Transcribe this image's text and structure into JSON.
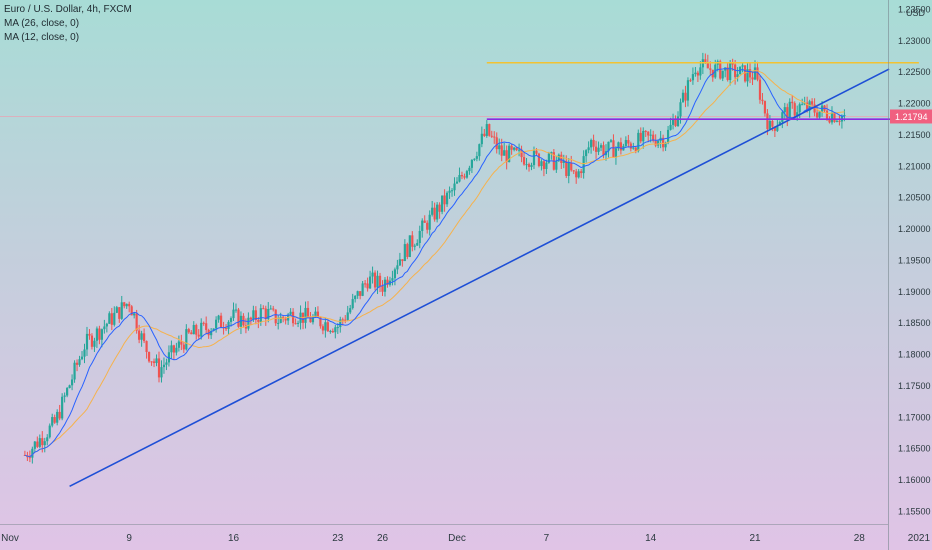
{
  "legend": {
    "title": "Euro / U.S. Dollar, 4h, FXCM",
    "ma1": "MA (26, close, 0)",
    "ma2": "MA (12, close, 0)"
  },
  "price_badge": "1.21794",
  "colors": {
    "up": "#26a69a",
    "down": "#ef5350",
    "trendline": "#1e4fd6",
    "resistance": "#f2c233",
    "support": "#8a2be2",
    "ma_slow": "#f6b24c",
    "ma_fast": "#2962ff",
    "badge": "#f06080"
  },
  "chart_data": {
    "type": "candlestick",
    "title": "Euro / U.S. Dollar, 4h, FXCM",
    "ylabel": "USD",
    "ylim": [
      1.153,
      1.2365
    ],
    "y_ticks": [
      "1.15500",
      "1.16000",
      "1.16500",
      "1.17000",
      "1.17500",
      "1.18000",
      "1.18500",
      "1.19000",
      "1.19500",
      "1.20000",
      "1.20500",
      "1.21000",
      "1.21500",
      "1.22000",
      "1.22500",
      "1.23000",
      "1.23500"
    ],
    "x_ticks": [
      "Nov",
      "9",
      "16",
      "23",
      "26",
      "Dec",
      "7",
      "14",
      "21",
      "28",
      "2021"
    ],
    "last_price": 1.21794,
    "series": [
      {
        "name": "MA (26, close, 0)"
      },
      {
        "name": "MA (12, close, 0)"
      }
    ],
    "close_path": [
      [
        "Nov 2",
        1.164
      ],
      [
        "Nov 4",
        1.169
      ],
      [
        "Nov 6",
        1.1815
      ],
      [
        "Nov 9",
        1.1885
      ],
      [
        "Nov 10",
        1.1815
      ],
      [
        "Nov 11",
        1.1775
      ],
      [
        "Nov 12",
        1.1805
      ],
      [
        "Nov 13",
        1.183
      ],
      [
        "Nov 16",
        1.186
      ],
      [
        "Nov 17",
        1.185
      ],
      [
        "Nov 18",
        1.187
      ],
      [
        "Nov 19",
        1.1855
      ],
      [
        "Nov 20",
        1.1865
      ],
      [
        "Nov 23",
        1.1845
      ],
      [
        "Nov 24",
        1.188
      ],
      [
        "Nov 25",
        1.192
      ],
      [
        "Nov 26",
        1.191
      ],
      [
        "Nov 27",
        1.195
      ],
      [
        "Dec 1",
        1.207
      ],
      [
        "Dec 2",
        1.2115
      ],
      [
        "Dec 3",
        1.2155
      ],
      [
        "Dec 4",
        1.212
      ],
      [
        "Dec 7",
        1.211
      ],
      [
        "Dec 8",
        1.2105
      ],
      [
        "Dec 9",
        1.208
      ],
      [
        "Dec 10",
        1.214
      ],
      [
        "Dec 11",
        1.2125
      ],
      [
        "Dec 14",
        1.2145
      ],
      [
        "Dec 15",
        1.2145
      ],
      [
        "Dec 16",
        1.2195
      ],
      [
        "Dec 17",
        1.226
      ],
      [
        "Dec 18",
        1.2255
      ],
      [
        "Dec 21",
        1.2245
      ],
      [
        "Dec 22",
        1.216
      ],
      [
        "Dec 23",
        1.2185
      ],
      [
        "Dec 24",
        1.2195
      ],
      [
        "Dec 27",
        1.2179
      ]
    ],
    "annotations": [
      {
        "name": "rising trendline",
        "from": [
          "Nov 5",
          1.159
        ],
        "to": [
          "Dec 30",
          1.2255
        ]
      },
      {
        "name": "resistance",
        "y": 1.2265,
        "from": "Dec 3",
        "to": "Jan 1"
      },
      {
        "name": "support",
        "y": 1.2175,
        "from": "Dec 3",
        "to": "Jan 1"
      }
    ]
  }
}
